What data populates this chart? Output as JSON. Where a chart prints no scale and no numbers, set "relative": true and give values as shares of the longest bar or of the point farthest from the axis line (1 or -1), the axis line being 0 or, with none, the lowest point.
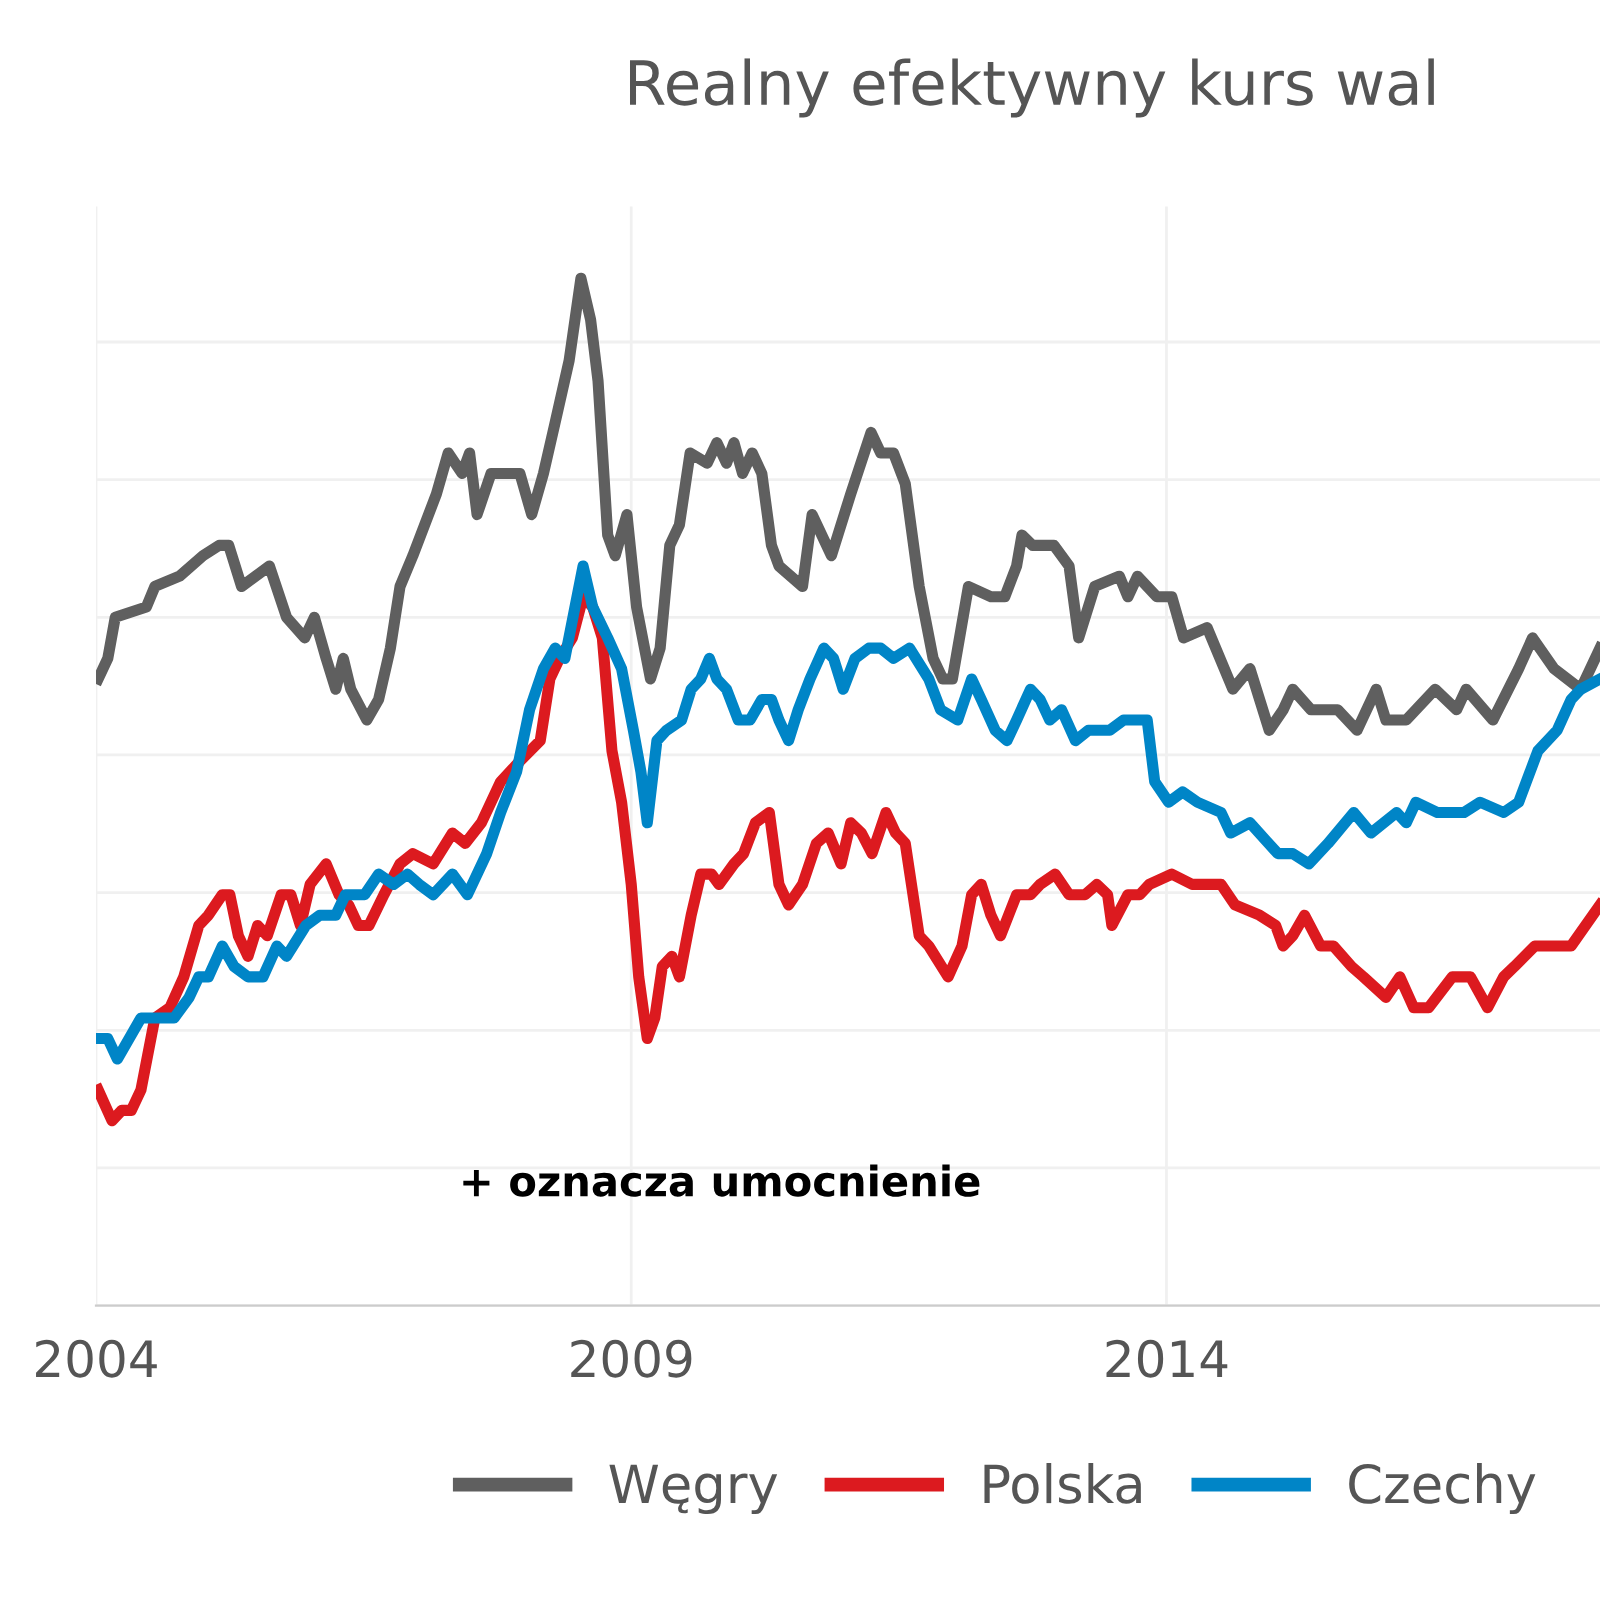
{
  "chart_data": {
    "type": "line",
    "title": "Realny efektywny kurs wal",
    "relative": true,
    "grid": true,
    "legend": "bottom",
    "xlim": [
      2004,
      2018.05
    ],
    "xticks": [
      2004,
      2009,
      2014
    ],
    "annotations": [
      "+ oznacza umocnienie"
    ],
    "series": [
      {
        "name": "Węgry",
        "color": "#5f5f5f",
        "x": [
          2004.02,
          2004.11,
          2004.18,
          2004.47,
          2004.55,
          2004.78,
          2005.0,
          2005.15,
          2005.24,
          2005.36,
          2005.62,
          2005.78,
          2005.95,
          2006.04,
          2006.15,
          2006.24,
          2006.31,
          2006.38,
          2006.53,
          2006.64,
          2006.75,
          2006.84,
          2006.96,
          2007.18,
          2007.29,
          2007.42,
          2007.49,
          2007.56,
          2007.69,
          2007.87,
          2007.96,
          2008.07,
          2008.18,
          2008.29,
          2008.42,
          2008.53,
          2008.62,
          2008.69,
          2008.78,
          2008.85,
          2008.96,
          2009.05,
          2009.18,
          2009.27,
          2009.36,
          2009.45,
          2009.55,
          2009.71,
          2009.8,
          2009.89,
          2009.96,
          2010.04,
          2010.13,
          2010.22,
          2010.31,
          2010.38,
          2010.6,
          2010.69,
          2010.87,
          2011.05,
          2011.24,
          2011.33,
          2011.45,
          2011.56,
          2011.69,
          2011.82,
          2011.91,
          2012.0,
          2012.15,
          2012.36,
          2012.49,
          2012.6,
          2012.65,
          2012.75,
          2012.95,
          2013.09,
          2013.18,
          2013.33,
          2013.56,
          2013.64,
          2013.73,
          2013.91,
          2014.05,
          2014.16,
          2014.38,
          2014.62,
          2014.78,
          2014.96,
          2015.09,
          2015.18,
          2015.35,
          2015.6,
          2015.78,
          2015.96,
          2016.05,
          2016.24,
          2016.51,
          2016.71,
          2016.8,
          2017.05,
          2017.29,
          2017.42,
          2017.62,
          2017.87,
          2018.05
        ],
        "values": [
          0.61,
          0.63,
          0.67,
          0.68,
          0.7,
          0.71,
          0.73,
          0.74,
          0.74,
          0.7,
          0.72,
          0.67,
          0.65,
          0.67,
          0.63,
          0.6,
          0.63,
          0.6,
          0.57,
          0.59,
          0.64,
          0.7,
          0.73,
          0.79,
          0.83,
          0.81,
          0.83,
          0.77,
          0.81,
          0.81,
          0.81,
          0.77,
          0.81,
          0.86,
          0.92,
          1.0,
          0.96,
          0.9,
          0.75,
          0.73,
          0.77,
          0.68,
          0.61,
          0.64,
          0.74,
          0.76,
          0.83,
          0.82,
          0.84,
          0.82,
          0.84,
          0.81,
          0.83,
          0.81,
          0.74,
          0.72,
          0.7,
          0.77,
          0.73,
          0.79,
          0.85,
          0.83,
          0.83,
          0.8,
          0.7,
          0.63,
          0.61,
          0.61,
          0.7,
          0.69,
          0.69,
          0.72,
          0.75,
          0.74,
          0.74,
          0.72,
          0.65,
          0.7,
          0.71,
          0.69,
          0.71,
          0.69,
          0.69,
          0.65,
          0.66,
          0.6,
          0.62,
          0.56,
          0.58,
          0.6,
          0.58,
          0.58,
          0.56,
          0.6,
          0.57,
          0.57,
          0.6,
          0.58,
          0.6,
          0.57,
          0.62,
          0.65,
          0.62,
          0.6,
          0.64
        ]
      },
      {
        "name": "Polska",
        "color": "#dc1a1f",
        "x": [
          2004.02,
          2004.15,
          2004.24,
          2004.33,
          2004.42,
          2004.55,
          2004.69,
          2004.82,
          2004.96,
          2005.05,
          2005.18,
          2005.25,
          2005.33,
          2005.42,
          2005.51,
          2005.6,
          2005.73,
          2005.82,
          2005.91,
          2006.0,
          2006.15,
          2006.27,
          2006.36,
          2006.45,
          2006.55,
          2006.69,
          2006.84,
          2006.96,
          2007.15,
          2007.33,
          2007.45,
          2007.6,
          2007.78,
          2007.96,
          2008.15,
          2008.24,
          2008.33,
          2008.45,
          2008.55,
          2008.64,
          2008.73,
          2008.82,
          2008.91,
          2009.0,
          2009.07,
          2009.15,
          2009.22,
          2009.29,
          2009.38,
          2009.45,
          2009.56,
          2009.65,
          2009.75,
          2009.82,
          2009.96,
          2010.05,
          2010.16,
          2010.29,
          2010.38,
          2010.47,
          2010.6,
          2010.73,
          2010.84,
          2010.96,
          2011.05,
          2011.15,
          2011.25,
          2011.38,
          2011.47,
          2011.56,
          2011.69,
          2011.78,
          2011.96,
          2012.09,
          2012.18,
          2012.27,
          2012.36,
          2012.45,
          2012.6,
          2012.73,
          2012.82,
          2012.96,
          2013.09,
          2013.24,
          2013.35,
          2013.45,
          2013.49,
          2013.64,
          2013.75,
          2013.84,
          2014.05,
          2014.24,
          2014.42,
          2014.51,
          2014.64,
          2014.87,
          2015.02,
          2015.09,
          2015.18,
          2015.29,
          2015.44,
          2015.56,
          2015.73,
          2015.84,
          2016.05,
          2016.18,
          2016.31,
          2016.45,
          2016.67,
          2016.84,
          2017.0,
          2017.15,
          2017.25,
          2017.44,
          2017.78,
          2018.05
        ],
        "values": [
          0.21,
          0.18,
          0.19,
          0.19,
          0.21,
          0.28,
          0.29,
          0.32,
          0.37,
          0.38,
          0.4,
          0.4,
          0.36,
          0.34,
          0.37,
          0.36,
          0.4,
          0.4,
          0.37,
          0.41,
          0.43,
          0.4,
          0.39,
          0.37,
          0.37,
          0.4,
          0.43,
          0.44,
          0.43,
          0.46,
          0.45,
          0.47,
          0.51,
          0.53,
          0.55,
          0.61,
          0.63,
          0.65,
          0.69,
          0.68,
          0.65,
          0.54,
          0.49,
          0.41,
          0.32,
          0.26,
          0.28,
          0.33,
          0.34,
          0.32,
          0.38,
          0.42,
          0.42,
          0.41,
          0.43,
          0.44,
          0.47,
          0.48,
          0.41,
          0.39,
          0.41,
          0.45,
          0.46,
          0.43,
          0.47,
          0.46,
          0.44,
          0.48,
          0.46,
          0.45,
          0.36,
          0.35,
          0.32,
          0.35,
          0.4,
          0.41,
          0.38,
          0.36,
          0.4,
          0.4,
          0.41,
          0.42,
          0.4,
          0.4,
          0.41,
          0.4,
          0.37,
          0.4,
          0.4,
          0.41,
          0.42,
          0.41,
          0.41,
          0.41,
          0.39,
          0.38,
          0.37,
          0.35,
          0.36,
          0.38,
          0.35,
          0.35,
          0.33,
          0.32,
          0.3,
          0.32,
          0.29,
          0.29,
          0.32,
          0.32,
          0.29,
          0.32,
          0.33,
          0.35,
          0.35,
          0.39
        ]
      },
      {
        "name": "Czechy",
        "color": "#0085c7",
        "x": [
          2004.02,
          2004.11,
          2004.2,
          2004.31,
          2004.42,
          2004.55,
          2004.73,
          2004.87,
          2004.96,
          2005.05,
          2005.18,
          2005.29,
          2005.42,
          2005.56,
          2005.69,
          2005.78,
          2005.96,
          2006.09,
          2006.24,
          2006.33,
          2006.42,
          2006.51,
          2006.64,
          2006.78,
          2006.91,
          2007.02,
          2007.15,
          2007.33,
          2007.47,
          2007.65,
          2007.78,
          2007.93,
          2008.05,
          2008.18,
          2008.29,
          2008.38,
          2008.55,
          2008.64,
          2008.78,
          2008.91,
          2009.02,
          2009.09,
          2009.15,
          2009.24,
          2009.33,
          2009.47,
          2009.56,
          2009.65,
          2009.73,
          2009.8,
          2009.89,
          2010.0,
          2010.11,
          2010.22,
          2010.31,
          2010.38,
          2010.47,
          2010.56,
          2010.67,
          2010.8,
          2010.89,
          2010.98,
          2011.09,
          2011.22,
          2011.33,
          2011.45,
          2011.6,
          2011.78,
          2011.89,
          2012.05,
          2012.18,
          2012.27,
          2012.4,
          2012.51,
          2012.6,
          2012.73,
          2012.82,
          2012.91,
          2013.02,
          2013.15,
          2013.27,
          2013.42,
          2013.47,
          2013.6,
          2013.73,
          2013.82,
          2013.89,
          2014.02,
          2014.15,
          2014.29,
          2014.51,
          2014.6,
          2014.78,
          2015.04,
          2015.18,
          2015.33,
          2015.51,
          2015.75,
          2015.91,
          2016.15,
          2016.24,
          2016.33,
          2016.53,
          2016.78,
          2016.93,
          2017.15,
          2017.29,
          2017.47,
          2017.65,
          2017.78,
          2017.87,
          2018.05
        ],
        "values": [
          0.26,
          0.26,
          0.24,
          0.26,
          0.28,
          0.28,
          0.28,
          0.3,
          0.32,
          0.32,
          0.35,
          0.33,
          0.32,
          0.32,
          0.35,
          0.34,
          0.37,
          0.38,
          0.38,
          0.4,
          0.4,
          0.4,
          0.42,
          0.41,
          0.42,
          0.41,
          0.4,
          0.42,
          0.4,
          0.44,
          0.48,
          0.52,
          0.58,
          0.62,
          0.64,
          0.63,
          0.72,
          0.68,
          0.65,
          0.62,
          0.56,
          0.52,
          0.47,
          0.55,
          0.56,
          0.57,
          0.6,
          0.61,
          0.63,
          0.61,
          0.6,
          0.57,
          0.57,
          0.59,
          0.59,
          0.57,
          0.55,
          0.58,
          0.61,
          0.64,
          0.63,
          0.6,
          0.63,
          0.64,
          0.64,
          0.63,
          0.64,
          0.61,
          0.58,
          0.57,
          0.61,
          0.59,
          0.56,
          0.55,
          0.57,
          0.6,
          0.59,
          0.57,
          0.58,
          0.55,
          0.56,
          0.56,
          0.56,
          0.57,
          0.57,
          0.57,
          0.51,
          0.49,
          0.5,
          0.49,
          0.48,
          0.46,
          0.47,
          0.44,
          0.44,
          0.43,
          0.45,
          0.48,
          0.46,
          0.48,
          0.47,
          0.49,
          0.48,
          0.48,
          0.49,
          0.48,
          0.49,
          0.54,
          0.56,
          0.59,
          0.6,
          0.61
        ]
      }
    ]
  }
}
